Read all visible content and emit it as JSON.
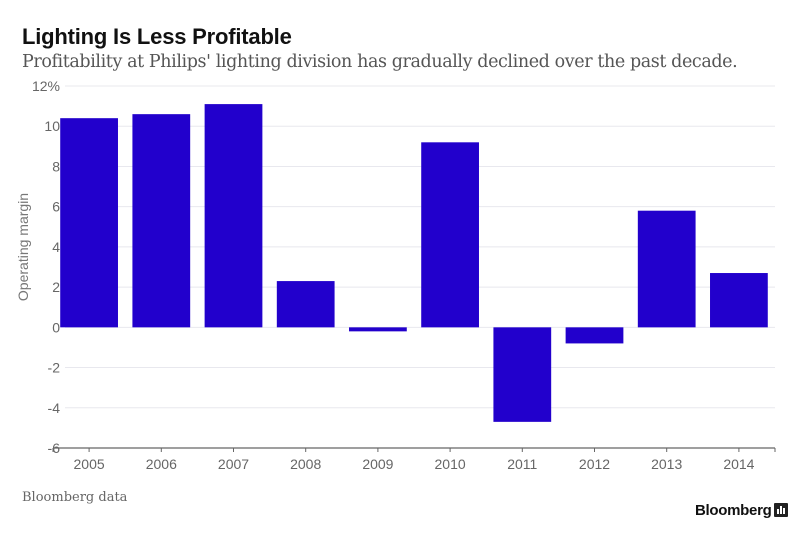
{
  "header": {
    "title": "Lighting Is Less Profitable",
    "subtitle": "Profitability at Philips' lighting division has gradually declined over the past decade."
  },
  "footer": {
    "source": "Bloomberg data",
    "brand": "Bloomberg",
    "brand_icon": "bar-chart-icon"
  },
  "colors": {
    "bar": "#2200CC",
    "grid": "#e8e8ee",
    "axis": "#666666"
  },
  "chart_data": {
    "type": "bar",
    "title": "Lighting Is Less Profitable",
    "subtitle": "Profitability at Philips' lighting division has gradually declined over the past decade.",
    "xlabel": "",
    "ylabel": "Operating margin",
    "categories": [
      "2005",
      "2006",
      "2007",
      "2008",
      "2009",
      "2010",
      "2011",
      "2012",
      "2013",
      "2014"
    ],
    "values": [
      10.4,
      10.6,
      11.1,
      2.3,
      -0.2,
      9.2,
      -4.7,
      -0.8,
      5.8,
      2.7
    ],
    "ylim": [
      -6,
      12
    ],
    "yticks": [
      -6,
      -4,
      -2,
      0,
      2,
      4,
      6,
      8,
      10,
      12
    ],
    "ytick_labels": [
      "-6",
      "-4",
      "-2",
      "0",
      "2",
      "4",
      "6",
      "8",
      "10",
      "12%"
    ],
    "grid": true,
    "legend": "none",
    "source": "Bloomberg data"
  }
}
